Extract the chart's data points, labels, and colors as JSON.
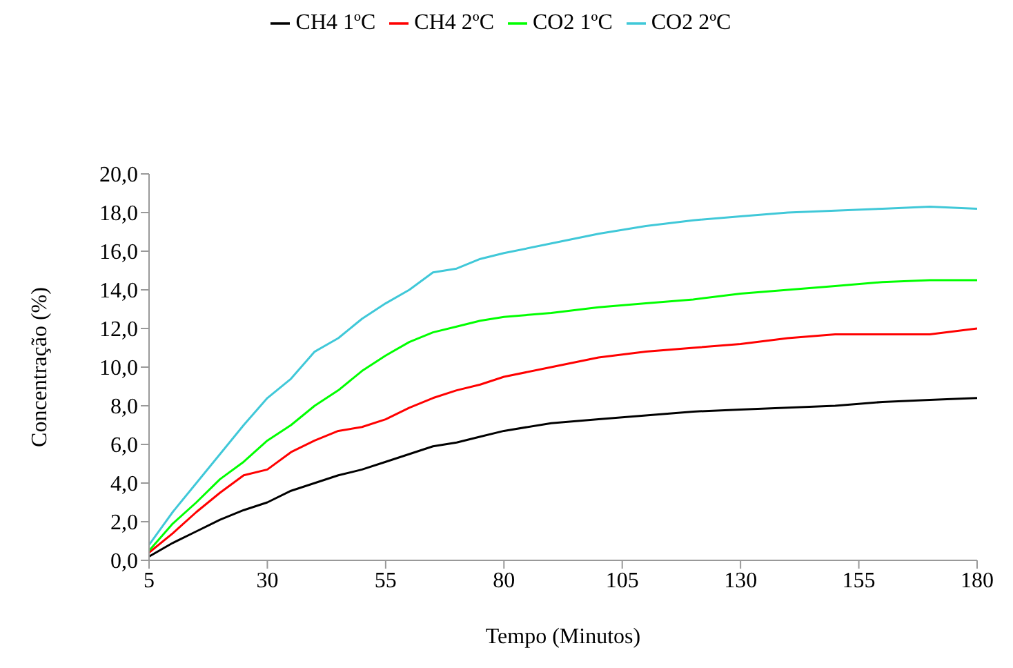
{
  "chart_data": {
    "type": "line",
    "xlabel": "Tempo (Minutos)",
    "ylabel": "Concentração (%)",
    "x": [
      5,
      10,
      15,
      20,
      25,
      30,
      35,
      40,
      45,
      50,
      55,
      60,
      65,
      70,
      75,
      80,
      90,
      100,
      110,
      120,
      130,
      140,
      150,
      160,
      170,
      180
    ],
    "series": [
      {
        "name": "CH4 1ºC",
        "color": "#000000",
        "values": [
          0.2,
          0.9,
          1.5,
          2.1,
          2.6,
          3.0,
          3.6,
          4.0,
          4.4,
          4.7,
          5.1,
          5.5,
          5.9,
          6.1,
          6.4,
          6.7,
          7.1,
          7.3,
          7.5,
          7.7,
          7.8,
          7.9,
          8.0,
          8.2,
          8.3,
          8.4
        ]
      },
      {
        "name": "CH4 2ºC",
        "color": "#ff0000",
        "values": [
          0.4,
          1.4,
          2.5,
          3.5,
          4.4,
          4.7,
          5.6,
          6.2,
          6.7,
          6.9,
          7.3,
          7.9,
          8.4,
          8.8,
          9.1,
          9.5,
          10.0,
          10.5,
          10.8,
          11.0,
          11.2,
          11.5,
          11.7,
          11.7,
          11.7,
          12.0
        ]
      },
      {
        "name": "CO2 1ºC",
        "color": "#00ff00",
        "values": [
          0.5,
          1.9,
          3.0,
          4.2,
          5.1,
          6.2,
          7.0,
          8.0,
          8.8,
          9.8,
          10.6,
          11.3,
          11.8,
          12.1,
          12.4,
          12.6,
          12.8,
          13.1,
          13.3,
          13.5,
          13.8,
          14.0,
          14.2,
          14.4,
          14.5,
          14.5
        ]
      },
      {
        "name": "CO2 2ºC",
        "color": "#40c8d8",
        "values": [
          0.8,
          2.5,
          4.0,
          5.5,
          7.0,
          8.4,
          9.4,
          10.8,
          11.5,
          12.5,
          13.3,
          14.0,
          14.9,
          15.1,
          15.6,
          15.9,
          16.4,
          16.9,
          17.3,
          17.6,
          17.8,
          18.0,
          18.1,
          18.2,
          18.3,
          18.2
        ]
      }
    ],
    "xlim": [
      5,
      180
    ],
    "xticks": [
      5,
      30,
      55,
      80,
      105,
      130,
      155,
      180
    ],
    "ylim": [
      0,
      20
    ],
    "yticks": [
      {
        "value": 0,
        "label": "0,0"
      },
      {
        "value": 2,
        "label": "2,0"
      },
      {
        "value": 4,
        "label": "4,0"
      },
      {
        "value": 6,
        "label": "6,0"
      },
      {
        "value": 8,
        "label": "8,0"
      },
      {
        "value": 10,
        "label": "10,0"
      },
      {
        "value": 12,
        "label": "12,0"
      },
      {
        "value": 14,
        "label": "14,0"
      },
      {
        "value": 16,
        "label": "16,0"
      },
      {
        "value": 18,
        "label": "18,0"
      },
      {
        "value": 20,
        "label": "20,0"
      }
    ],
    "grid": false,
    "legend": "top",
    "marker": "none",
    "line_style": "solid"
  }
}
